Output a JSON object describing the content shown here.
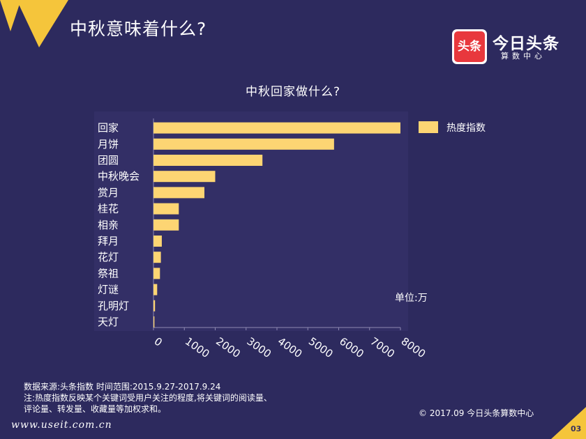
{
  "page": {
    "title": "中秋意味着什么?",
    "page_number": "03",
    "watermark": "www.useit.com.cn"
  },
  "logo": {
    "badge_text": "头条",
    "name": "今日头条",
    "sub": "算数中心"
  },
  "chart_data": {
    "type": "bar",
    "orientation": "horizontal",
    "title": "中秋回家做什么?",
    "categories": [
      "回家",
      "月饼",
      "团圆",
      "中秋晚会",
      "赏月",
      "桂花",
      "相亲",
      "拜月",
      "花灯",
      "祭祖",
      "灯谜",
      "孔明灯",
      "天灯"
    ],
    "series": [
      {
        "name": "热度指数",
        "values": [
          8000,
          5850,
          3530,
          2000,
          1650,
          820,
          820,
          270,
          240,
          210,
          120,
          50,
          30
        ]
      }
    ],
    "xlim": [
      0,
      8000
    ],
    "x_ticks": [
      "0",
      "1000",
      "2000",
      "3000",
      "4000",
      "5000",
      "6000",
      "7000",
      "8000"
    ],
    "unit": "单位:万",
    "bar_color": "#fdd573",
    "grid": false,
    "legend_position": "right"
  },
  "footer": {
    "source": "数据来源:头条指数 时间范围:2015.9.27-2017.9.24",
    "note_line1": "注:热度指数反映某个关键词受用户关注的程度,将关键词的阅读量、",
    "note_line2": "评论量、转发量、收藏量等加权求和。",
    "copyright": "© 2017.09 今日头条算数中心"
  },
  "colors": {
    "background": "#2d2a5e",
    "accent_gold": "#f5c53b",
    "bar": "#fdd573",
    "logo_red": "#e8383d"
  }
}
